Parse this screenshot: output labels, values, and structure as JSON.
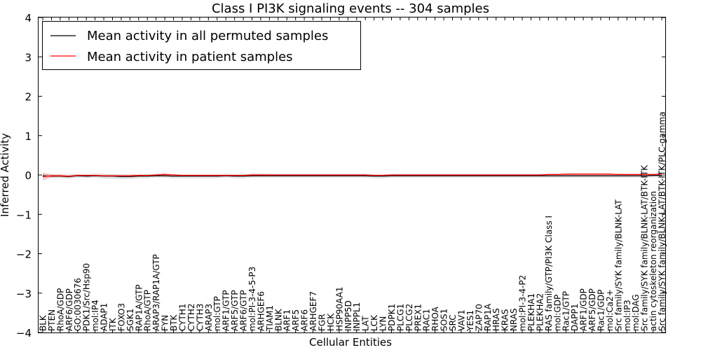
{
  "chart_data": {
    "type": "line",
    "title": "Class I PI3K signaling events -- 304 samples",
    "xlabel": "Cellular Entities",
    "ylabel": "Inferred Activity",
    "ylim": [
      -4,
      4
    ],
    "yticks": [
      -4,
      -3,
      -2,
      -1,
      0,
      1,
      2,
      3,
      4
    ],
    "ytick_labels": [
      "−4",
      "−3",
      "−2",
      "−1",
      "0",
      "1",
      "2",
      "3",
      "4"
    ],
    "grid": false,
    "legend_position": "top-left",
    "categories": [
      "BLK",
      "PTEN",
      "RhoA/GDP",
      "ARF6/GDP",
      "GO:0030676",
      "PDK1/Src/Hsp90",
      "mol:IP4",
      "ADAP1",
      "ITK",
      "FOXO3",
      "SGK1",
      "RAP1A/GTP",
      "RhoA/GTP",
      "ARAP3/RAP1A/GTP",
      "FYN",
      "BTK",
      "CYTH1",
      "CYTH2",
      "CYTH3",
      "ARAP3",
      "mol:GTP",
      "ARF1/GTP",
      "ARF5/GTP",
      "ARF6/GTP",
      "mol:PI-3-4-5-P3",
      "ARHGEF6",
      "TIAM1",
      "BLNK",
      "ARF1",
      "ARF5",
      "ARF6",
      "ARHGEF7",
      "FGR",
      "HCK",
      "HSP90AA1",
      "INPP5D",
      "INPPL1",
      "LAT",
      "LCK",
      "LYN",
      "PDPK1",
      "PLCG1",
      "PLCG2",
      "PREX1",
      "RAC1",
      "RHOA",
      "SOS1",
      "SRC",
      "VAV1",
      "YES1",
      "ZAP70",
      "RAP1A",
      "HRAS",
      "KRAS",
      "NRAS",
      "mol:PI-3-4-P2",
      "PLEKHA1",
      "PLEKHA2",
      "RAS family/GTP/PI3K Class I",
      "mol:GDP",
      "Rac1/GTP",
      "DAPP1",
      "ARF1/GDP",
      "ARF5/GDP",
      "Rac1/GDP",
      "mol:Ca2+",
      "Src family/SYK family/BLNK-LAT",
      "mol:IP3",
      "mol:DAG",
      "Src family/SYK family/BLNK-LAT/BTK-ITK",
      "actin cytoskeleton reorganization",
      "Src family/SYK family/BLNK-LAT/BTK-ITK/PLC-gamma"
    ],
    "series": [
      {
        "name": "Mean activity in all permuted samples",
        "color": "#000000",
        "band_color": "#cccccc",
        "values": [
          -0.02,
          -0.03,
          -0.03,
          -0.04,
          -0.02,
          -0.03,
          -0.02,
          -0.03,
          -0.03,
          -0.04,
          -0.04,
          -0.03,
          -0.03,
          -0.02,
          -0.02,
          -0.03,
          -0.03,
          -0.03,
          -0.03,
          -0.03,
          -0.03,
          -0.02,
          -0.03,
          -0.03,
          -0.02,
          -0.02,
          -0.02,
          -0.02,
          -0.02,
          -0.02,
          -0.02,
          -0.02,
          -0.02,
          -0.02,
          -0.02,
          -0.02,
          -0.02,
          -0.02,
          -0.03,
          -0.03,
          -0.02,
          -0.02,
          -0.02,
          -0.02,
          -0.02,
          -0.02,
          -0.02,
          -0.02,
          -0.02,
          -0.02,
          -0.02,
          -0.02,
          -0.02,
          -0.02,
          -0.02,
          -0.02,
          -0.02,
          -0.02,
          -0.02,
          -0.02,
          -0.02,
          -0.02,
          -0.02,
          -0.02,
          -0.02,
          -0.02,
          -0.02,
          -0.02,
          -0.02,
          -0.02,
          -0.01,
          -0.01
        ],
        "spread": [
          0.05,
          0.05,
          0.05,
          0.05,
          0.05,
          0.05,
          0.05,
          0.06,
          0.06,
          0.06,
          0.06,
          0.05,
          0.05,
          0.05,
          0.05,
          0.05,
          0.05,
          0.05,
          0.05,
          0.05,
          0.05,
          0.05,
          0.05,
          0.05,
          0.05,
          0.05,
          0.05,
          0.05,
          0.05,
          0.05,
          0.05,
          0.05,
          0.05,
          0.05,
          0.05,
          0.05,
          0.05,
          0.05,
          0.05,
          0.05,
          0.05,
          0.05,
          0.05,
          0.05,
          0.05,
          0.05,
          0.05,
          0.05,
          0.05,
          0.05,
          0.05,
          0.05,
          0.05,
          0.05,
          0.05,
          0.05,
          0.05,
          0.05,
          0.05,
          0.05,
          0.05,
          0.05,
          0.05,
          0.05,
          0.05,
          0.05,
          0.05,
          0.05,
          0.05,
          0.05,
          0.05,
          0.05
        ]
      },
      {
        "name": "Mean activity in patient samples",
        "color": "#ff0000",
        "band_color": "#f4a0a0",
        "values": [
          -0.04,
          -0.02,
          -0.02,
          -0.03,
          -0.01,
          -0.01,
          -0.01,
          -0.02,
          -0.02,
          -0.02,
          -0.02,
          -0.01,
          -0.01,
          0.0,
          0.01,
          0.0,
          -0.01,
          -0.01,
          -0.01,
          -0.01,
          -0.01,
          -0.01,
          -0.01,
          -0.01,
          0.0,
          0.0,
          0.0,
          0.0,
          0.0,
          0.0,
          0.0,
          0.0,
          0.0,
          0.0,
          0.0,
          0.0,
          0.0,
          0.0,
          -0.01,
          -0.01,
          0.0,
          0.0,
          0.0,
          0.0,
          0.0,
          0.0,
          0.0,
          0.0,
          0.0,
          0.0,
          0.0,
          0.0,
          0.0,
          0.0,
          0.0,
          0.0,
          0.0,
          0.0,
          0.01,
          0.01,
          0.02,
          0.02,
          0.02,
          0.02,
          0.02,
          0.02,
          0.01,
          0.01,
          0.01,
          0.01,
          0.01,
          0.02
        ],
        "spread": [
          0.1,
          0.04,
          0.03,
          0.03,
          0.02,
          0.02,
          0.02,
          0.02,
          0.02,
          0.02,
          0.02,
          0.02,
          0.02,
          0.02,
          0.04,
          0.02,
          0.02,
          0.02,
          0.02,
          0.02,
          0.02,
          0.02,
          0.02,
          0.02,
          0.03,
          0.03,
          0.02,
          0.02,
          0.02,
          0.02,
          0.02,
          0.02,
          0.02,
          0.02,
          0.02,
          0.02,
          0.02,
          0.02,
          0.02,
          0.02,
          0.02,
          0.02,
          0.02,
          0.02,
          0.02,
          0.02,
          0.02,
          0.02,
          0.02,
          0.02,
          0.02,
          0.02,
          0.02,
          0.02,
          0.02,
          0.02,
          0.02,
          0.02,
          0.02,
          0.02,
          0.03,
          0.03,
          0.03,
          0.03,
          0.03,
          0.03,
          0.02,
          0.02,
          0.02,
          0.02,
          0.02,
          0.02
        ]
      }
    ]
  }
}
